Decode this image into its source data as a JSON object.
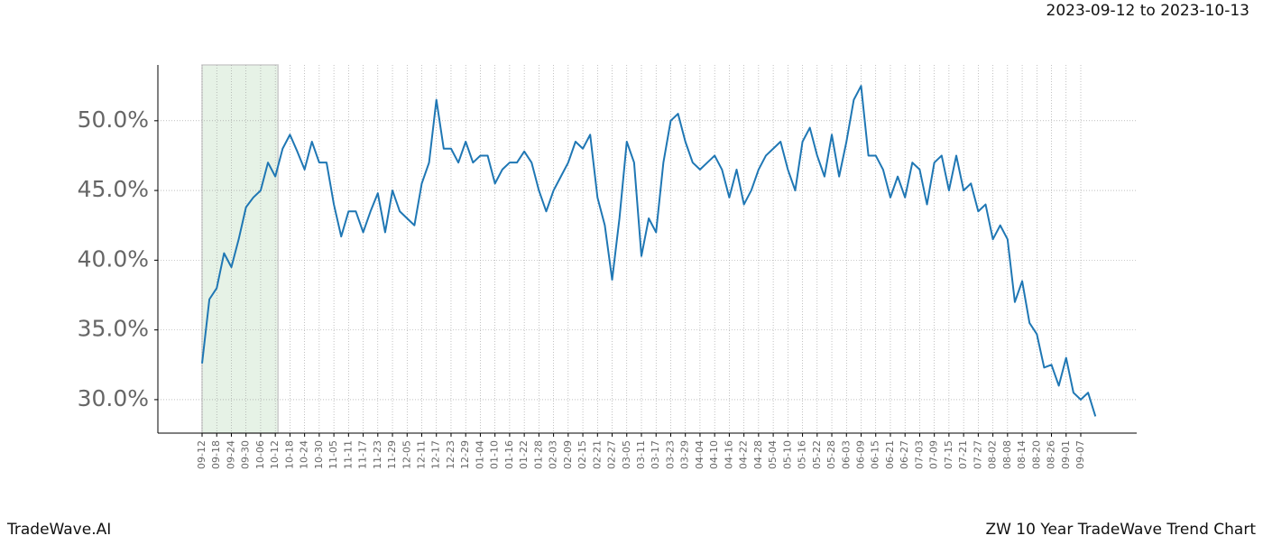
{
  "chart_data": {
    "type": "line",
    "subtitle": "2023-09-12 to 2023-10-13",
    "footer_left": "TradeWave.AI",
    "footer_right": "ZW 10 Year TradeWave Trend Chart",
    "categories": [
      "09-12",
      null,
      "09-18",
      null,
      "09-24",
      null,
      "09-30",
      null,
      "10-06",
      null,
      "10-12",
      null,
      "10-18",
      null,
      "10-24",
      null,
      "10-30",
      null,
      "11-05",
      null,
      "11-11",
      null,
      "11-17",
      null,
      "11-23",
      null,
      "11-29",
      null,
      "12-05",
      null,
      "12-11",
      null,
      "12-17",
      null,
      "12-23",
      null,
      "12-29",
      null,
      "01-04",
      null,
      "01-10",
      null,
      "01-16",
      null,
      "01-22",
      null,
      "01-28",
      null,
      "02-03",
      null,
      "02-09",
      null,
      "02-15",
      null,
      "02-21",
      null,
      "02-27",
      null,
      "03-05",
      null,
      "03-11",
      null,
      "03-17",
      null,
      "03-23",
      null,
      "03-29",
      null,
      "04-04",
      null,
      "04-10",
      null,
      "04-16",
      null,
      "04-22",
      null,
      "04-28",
      null,
      "05-04",
      null,
      "05-10",
      null,
      "05-16",
      null,
      "05-22",
      null,
      "05-28",
      null,
      "06-03",
      null,
      "06-09",
      null,
      "06-15",
      null,
      "06-21",
      null,
      "06-27",
      null,
      "07-03",
      null,
      "07-09",
      null,
      "07-15",
      null,
      "07-21",
      null,
      "07-27",
      null,
      "08-02",
      null,
      "08-08",
      null,
      "08-14",
      null,
      "08-20",
      null,
      "08-26",
      null,
      "09-01",
      null,
      "09-07",
      null,
      null
    ],
    "values": [
      32.6,
      37.2,
      38.0,
      40.5,
      39.5,
      41.5,
      43.8,
      44.5,
      45.0,
      47.0,
      46.0,
      48.0,
      49.0,
      47.8,
      46.5,
      48.5,
      47.0,
      47.0,
      44.0,
      41.7,
      43.5,
      43.5,
      42.0,
      43.5,
      44.8,
      42.0,
      45.0,
      43.5,
      43.0,
      42.5,
      45.5,
      47.0,
      51.5,
      48.0,
      48.0,
      47.0,
      48.5,
      47.0,
      47.5,
      47.5,
      45.5,
      46.5,
      47.0,
      47.0,
      47.8,
      47.0,
      45.0,
      43.5,
      45.0,
      46.0,
      47.0,
      48.5,
      48.0,
      49.0,
      44.5,
      42.5,
      38.6,
      43.0,
      48.5,
      47.0,
      40.3,
      43.0,
      42.0,
      47.0,
      50.0,
      50.5,
      48.5,
      47.0,
      46.5,
      47.0,
      47.5,
      46.5,
      44.5,
      46.5,
      44.0,
      45.0,
      46.5,
      47.5,
      48.0,
      48.5,
      46.5,
      45.0,
      48.5,
      49.5,
      47.5,
      46.0,
      49.0,
      46.0,
      48.5,
      51.5,
      52.5,
      47.5,
      47.5,
      46.5,
      44.5,
      46.0,
      44.5,
      47.0,
      46.5,
      44.0,
      47.0,
      47.5,
      45.0,
      47.5,
      45.0,
      45.5,
      43.5,
      44.0,
      41.5,
      42.5,
      41.5,
      37.0,
      38.5,
      35.5,
      34.7,
      32.3,
      32.5,
      31.0,
      33.0,
      30.5,
      30.0,
      30.5,
      28.8
    ],
    "color": "#1f77b4",
    "highlight_span": [
      0,
      10
    ],
    "highlight_color": "#e6f2e6",
    "ylim": [
      27.6,
      54.0
    ],
    "yticks": [
      {
        "value": 30,
        "label": "30.0%"
      },
      {
        "value": 35,
        "label": "35.0%"
      },
      {
        "value": 40,
        "label": "40.0%"
      },
      {
        "value": 45,
        "label": "45.0%"
      },
      {
        "value": 50,
        "label": "50.0%"
      }
    ],
    "grid": true
  }
}
